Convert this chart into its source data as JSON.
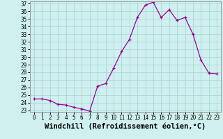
{
  "x": [
    0,
    1,
    2,
    3,
    4,
    5,
    6,
    7,
    8,
    9,
    10,
    11,
    12,
    13,
    14,
    15,
    16,
    17,
    18,
    19,
    20,
    21,
    22,
    23
  ],
  "y": [
    24.5,
    24.5,
    24.3,
    23.8,
    23.7,
    23.4,
    23.2,
    22.9,
    26.2,
    26.5,
    28.5,
    30.7,
    32.3,
    35.2,
    36.8,
    37.2,
    35.2,
    36.2,
    34.8,
    35.2,
    33.0,
    29.6,
    27.9,
    27.8
  ],
  "bg_color": "#cff0ee",
  "line_color": "#990099",
  "marker_color": "#990099",
  "grid_color": "#aad8d8",
  "xlabel": "Windchill (Refroidissement éolien,°C)",
  "ylim": [
    23,
    37
  ],
  "xlim": [
    -0.5,
    23.5
  ],
  "yticks": [
    23,
    24,
    25,
    26,
    27,
    28,
    29,
    30,
    31,
    32,
    33,
    34,
    35,
    36,
    37
  ],
  "xticks": [
    0,
    1,
    2,
    3,
    4,
    5,
    6,
    7,
    8,
    9,
    10,
    11,
    12,
    13,
    14,
    15,
    16,
    17,
    18,
    19,
    20,
    21,
    22,
    23
  ],
  "tick_fontsize": 5.5,
  "xlabel_fontsize": 7.5
}
